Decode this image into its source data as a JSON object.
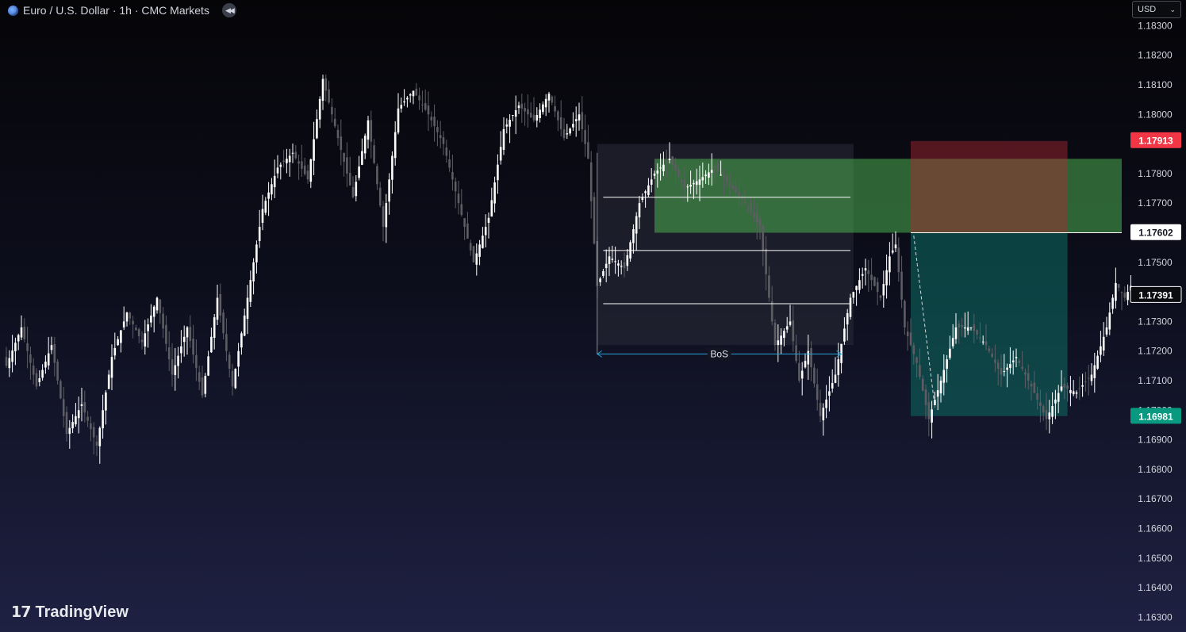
{
  "header": {
    "symbol_title": "Euro / U.S. Dollar · 1h · CMC Markets",
    "globe_icon": "globe-icon",
    "rewind_icon": "rewind-icon"
  },
  "currency_select": {
    "value": "USD"
  },
  "brand": {
    "name": "TradingView"
  },
  "price_labels": {
    "stop": {
      "text": "1.17913",
      "color": "#f23645"
    },
    "entry": {
      "text": "1.17602",
      "color": "#ffffff"
    },
    "last": {
      "text": "1.17391",
      "color": "#ffffff"
    },
    "target": {
      "text": "1.16981",
      "color": "#089981"
    }
  },
  "annotations": {
    "bos": "BoS"
  },
  "chart_data": {
    "type": "candlestick",
    "title": "Euro / U.S. Dollar · 1h · CMC Markets",
    "ylim": [
      1.1625,
      1.1836
    ],
    "y_ticks": [
      "1.18300",
      "1.18200",
      "1.18100",
      "1.18000",
      "1.17900",
      "1.17800",
      "1.17700",
      "1.17600",
      "1.17500",
      "1.17400",
      "1.17300",
      "1.17200",
      "1.17100",
      "1.17000",
      "1.16900",
      "1.16800",
      "1.16700",
      "1.16600",
      "1.16500",
      "1.16400",
      "1.16300"
    ],
    "close_keyframes": [
      [
        0,
        1.1715
      ],
      [
        5,
        1.1728
      ],
      [
        10,
        1.1708
      ],
      [
        15,
        1.1722
      ],
      [
        20,
        1.1692
      ],
      [
        25,
        1.1702
      ],
      [
        30,
        1.1688
      ],
      [
        35,
        1.1718
      ],
      [
        40,
        1.1733
      ],
      [
        45,
        1.1723
      ],
      [
        50,
        1.1738
      ],
      [
        55,
        1.1712
      ],
      [
        60,
        1.1728
      ],
      [
        65,
        1.1705
      ],
      [
        70,
        1.1738
      ],
      [
        75,
        1.1708
      ],
      [
        80,
        1.1738
      ],
      [
        85,
        1.1768
      ],
      [
        90,
        1.1782
      ],
      [
        95,
        1.1787
      ],
      [
        100,
        1.1778
      ],
      [
        105,
        1.1812
      ],
      [
        110,
        1.1792
      ],
      [
        115,
        1.1772
      ],
      [
        120,
        1.1798
      ],
      [
        125,
        1.1762
      ],
      [
        130,
        1.1802
      ],
      [
        135,
        1.1808
      ],
      [
        140,
        1.18
      ],
      [
        145,
        1.179
      ],
      [
        150,
        1.177
      ],
      [
        155,
        1.175
      ],
      [
        160,
        1.1765
      ],
      [
        165,
        1.1795
      ],
      [
        170,
        1.1803
      ],
      [
        175,
        1.1798
      ],
      [
        180,
        1.1807
      ],
      [
        185,
        1.1792
      ],
      [
        190,
        1.18
      ],
      [
        193,
        1.1785
      ],
      [
        196,
        1.1742
      ],
      [
        200,
        1.1752
      ],
      [
        205,
        1.1748
      ],
      [
        210,
        1.177
      ],
      [
        215,
        1.178
      ],
      [
        220,
        1.1785
      ],
      [
        225,
        1.1775
      ],
      [
        230,
        1.1778
      ],
      [
        235,
        1.1782
      ],
      [
        240,
        1.1776
      ],
      [
        245,
        1.177
      ],
      [
        250,
        1.1762
      ],
      [
        255,
        1.1722
      ],
      [
        260,
        1.173
      ],
      [
        263,
        1.171
      ],
      [
        266,
        1.172
      ],
      [
        270,
        1.1698
      ],
      [
        275,
        1.1712
      ],
      [
        280,
        1.1738
      ],
      [
        285,
        1.1748
      ],
      [
        290,
        1.1738
      ],
      [
        293,
        1.1752
      ],
      [
        295,
        1.1756
      ],
      [
        298,
        1.1728
      ],
      [
        302,
        1.1716
      ],
      [
        306,
        1.1697
      ],
      [
        310,
        1.171
      ],
      [
        315,
        1.1728
      ],
      [
        320,
        1.1728
      ],
      [
        325,
        1.1722
      ],
      [
        330,
        1.1712
      ],
      [
        335,
        1.1718
      ],
      [
        340,
        1.1708
      ],
      [
        345,
        1.1697
      ],
      [
        350,
        1.1708
      ],
      [
        355,
        1.1706
      ],
      [
        360,
        1.1712
      ],
      [
        365,
        1.1728
      ],
      [
        368,
        1.1743
      ],
      [
        371,
        1.1738
      ],
      [
        373,
        1.1742
      ]
    ],
    "zones": [
      {
        "name": "range-box",
        "x": [
          196,
          281
        ],
        "y": [
          1.1722,
          1.179
        ]
      },
      {
        "name": "supply-zone",
        "x": [
          215,
          370
        ],
        "y": [
          1.176,
          1.1785
        ]
      },
      {
        "name": "stop-zone",
        "x": [
          300,
          352
        ],
        "y": [
          1.176,
          1.1791
        ]
      },
      {
        "name": "target-zone",
        "x": [
          300,
          352
        ],
        "y": [
          1.1698,
          1.176
        ]
      }
    ],
    "levels": [
      {
        "y": 1.1772,
        "x": [
          198,
          280
        ]
      },
      {
        "y": 1.1754,
        "x": [
          198,
          280
        ]
      },
      {
        "y": 1.1736,
        "x": [
          198,
          280
        ]
      },
      {
        "y": 1.176,
        "x": [
          300,
          370
        ]
      }
    ],
    "bos_arrow": {
      "x": [
        196,
        277
      ],
      "y": 1.1719,
      "label": "BoS"
    },
    "projection": {
      "from": [
        301,
        1.1759
      ],
      "to": [
        308,
        1.1701
      ]
    }
  }
}
